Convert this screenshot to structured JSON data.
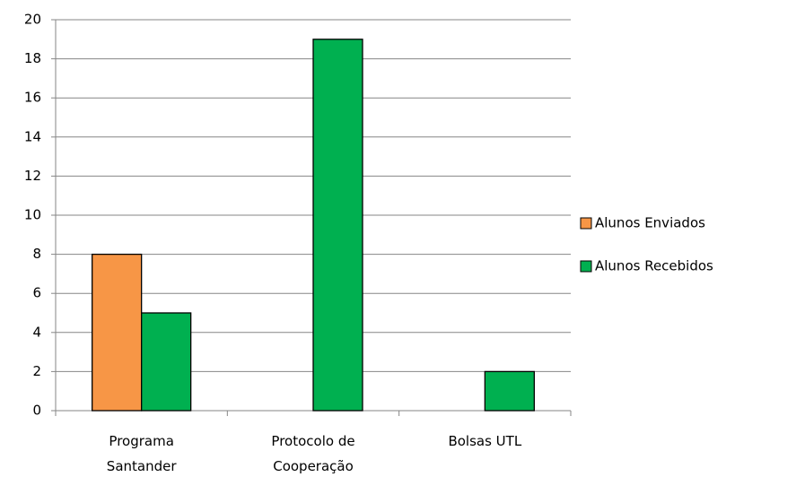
{
  "chart_data": {
    "type": "bar",
    "categories": [
      "Programa Santander",
      "Protocolo de Cooperação",
      "Bolsas UTL"
    ],
    "series": [
      {
        "name": "Alunos Enviados",
        "color": "#f79646",
        "values": [
          8,
          0,
          0
        ]
      },
      {
        "name": "Alunos Recebidos",
        "color": "#00b050",
        "values": [
          5,
          19,
          2
        ]
      }
    ],
    "ylim": [
      0,
      20
    ],
    "yticks": [
      0,
      2,
      4,
      6,
      8,
      10,
      12,
      14,
      16,
      18,
      20
    ],
    "grid": true,
    "legend": "right"
  }
}
